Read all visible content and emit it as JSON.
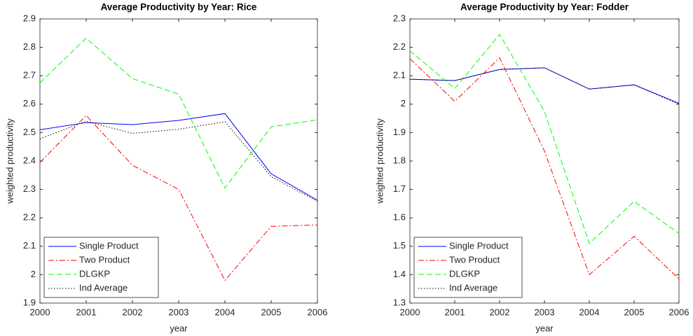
{
  "chart_data": [
    {
      "type": "line",
      "title": "Average Productivity by Year: Rice",
      "x_label": "year",
      "y_label": "weighted productivity",
      "x": [
        2000,
        2001,
        2002,
        2003,
        2004,
        2005,
        2006
      ],
      "xlim": [
        2000,
        2006
      ],
      "xticks": [
        2000,
        2001,
        2002,
        2003,
        2004,
        2005,
        2006
      ],
      "ylim": [
        1.9,
        2.9
      ],
      "yticks": [
        1.9,
        2,
        2.1,
        2.2,
        2.3,
        2.4,
        2.5,
        2.6,
        2.7,
        2.8,
        2.9
      ],
      "legend": "lower left",
      "series": [
        {
          "name": "Single Product",
          "color": "#0000ff",
          "linestyle": "solid",
          "values": [
            2.51,
            2.535,
            2.528,
            2.543,
            2.567,
            2.355,
            2.262
          ]
        },
        {
          "name": "Two Product",
          "color": "#ff0000",
          "linestyle": "dashdot",
          "values": [
            2.395,
            2.56,
            2.385,
            2.3,
            1.98,
            2.17,
            2.175
          ]
        },
        {
          "name": "DLGKP",
          "color": "#00ff00",
          "linestyle": "dashed",
          "values": [
            2.675,
            2.832,
            2.69,
            2.635,
            2.305,
            2.52,
            2.545
          ]
        },
        {
          "name": "Ind Average",
          "color": "#000000",
          "linestyle": "dotted",
          "values": [
            2.478,
            2.54,
            2.497,
            2.512,
            2.538,
            2.345,
            2.258
          ]
        }
      ]
    },
    {
      "type": "line",
      "title": "Average Productivity by Year: Fodder",
      "x_label": "year",
      "y_label": "weighted productivity",
      "x": [
        2000,
        2001,
        2002,
        2003,
        2004,
        2005,
        2006
      ],
      "xlim": [
        2000,
        2006
      ],
      "xticks": [
        2000,
        2001,
        2002,
        2003,
        2004,
        2005,
        2006
      ],
      "ylim": [
        1.3,
        2.3
      ],
      "yticks": [
        1.3,
        1.4,
        1.5,
        1.6,
        1.7,
        1.8,
        1.9,
        2,
        2.1,
        2.2,
        2.3
      ],
      "legend": "lower left",
      "series": [
        {
          "name": "Single Product",
          "color": "#0000ff",
          "linestyle": "solid",
          "values": [
            2.088,
            2.083,
            2.122,
            2.128,
            2.053,
            2.068,
            2.003
          ]
        },
        {
          "name": "Two Product",
          "color": "#ff0000",
          "linestyle": "dashdot",
          "values": [
            2.16,
            2.01,
            2.163,
            1.835,
            1.4,
            1.535,
            1.385
          ]
        },
        {
          "name": "DLGKP",
          "color": "#00ff00",
          "linestyle": "dashed",
          "values": [
            2.188,
            2.055,
            2.245,
            1.975,
            1.51,
            1.658,
            1.545
          ]
        },
        {
          "name": "Ind Average",
          "color": "#000000",
          "linestyle": "dotted",
          "values": [
            2.088,
            2.083,
            2.122,
            2.128,
            2.053,
            2.068,
            2.0
          ]
        }
      ]
    }
  ]
}
